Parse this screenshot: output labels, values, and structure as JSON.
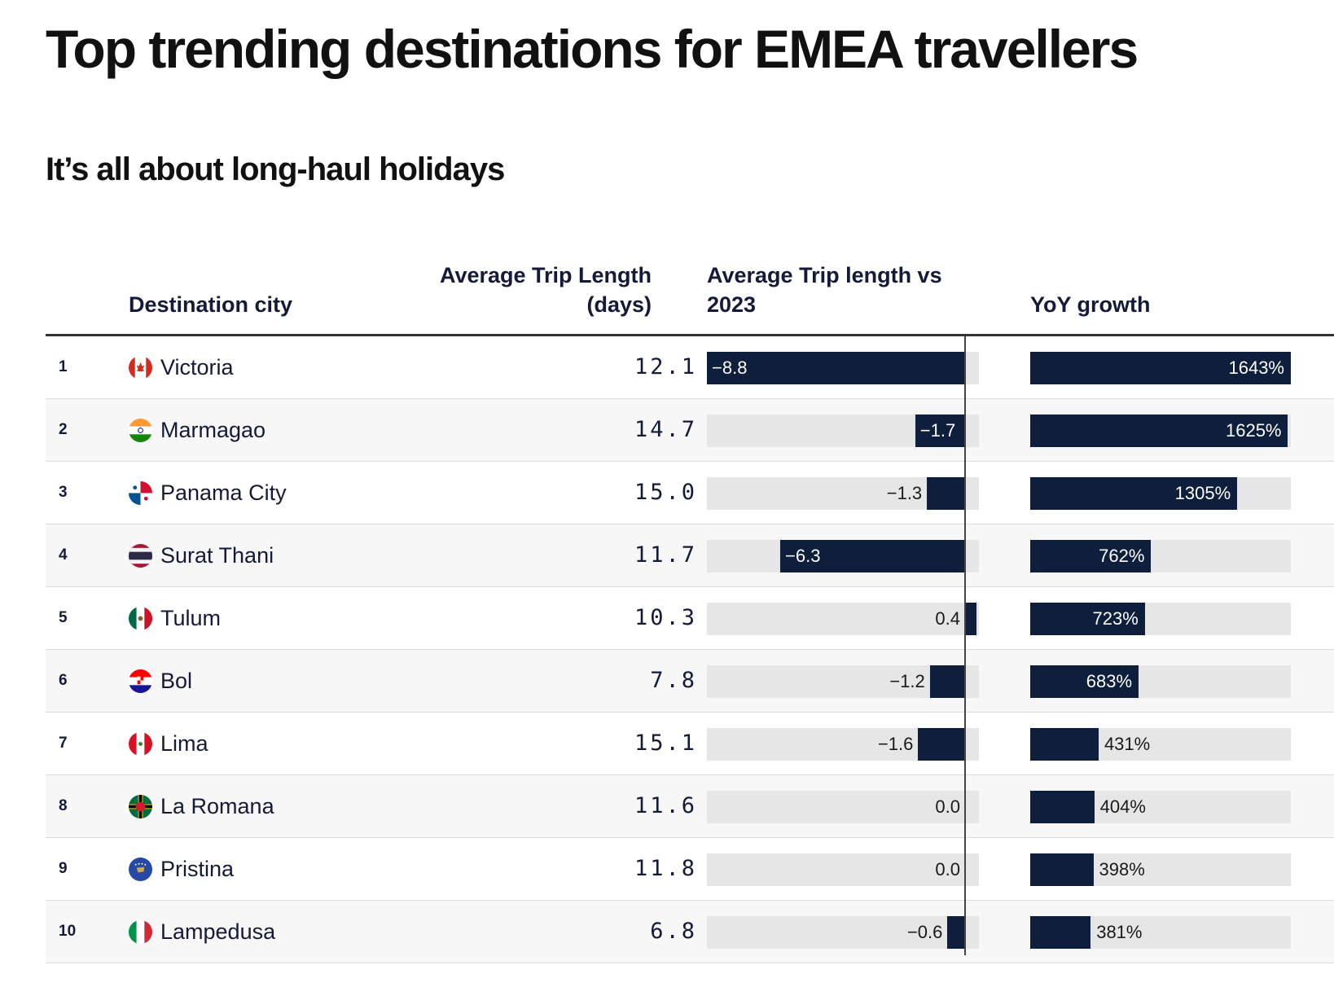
{
  "title": "Top trending destinations for EMEA travellers",
  "subtitle": "It’s all about long-haul holidays",
  "headers": {
    "city": "Destination city",
    "avg_len_line1": "Average Trip Length",
    "avg_len_line2": "(days)",
    "diff_line1": "Average Trip length vs",
    "diff_line2": "2023",
    "yoy": "YoY growth"
  },
  "chart_data": {
    "type": "table",
    "title": "Top trending destinations for EMEA travellers",
    "subtitle": "It’s all about long-haul holidays",
    "columns": [
      "",
      "Destination city",
      "Average Trip Length (days)",
      "Average Trip length vs 2023",
      "YoY growth"
    ],
    "diff_range": [
      -8.8,
      0.4
    ],
    "yoy_range": [
      0,
      1643
    ],
    "rows": [
      {
        "rank": "1",
        "flag": "canada-flag",
        "city": "Victoria",
        "avg": "12.1",
        "diff": -8.8,
        "diff_label": "−8.8",
        "yoy": 1643,
        "yoy_label": "1643%"
      },
      {
        "rank": "2",
        "flag": "india-flag",
        "city": "Marmagao",
        "avg": "14.7",
        "diff": -1.7,
        "diff_label": "−1.7",
        "yoy": 1625,
        "yoy_label": "1625%"
      },
      {
        "rank": "3",
        "flag": "panama-flag",
        "city": "Panama City",
        "avg": "15.0",
        "diff": -1.3,
        "diff_label": "−1.3",
        "yoy": 1305,
        "yoy_label": "1305%"
      },
      {
        "rank": "4",
        "flag": "thailand-flag",
        "city": "Surat Thani",
        "avg": "11.7",
        "diff": -6.3,
        "diff_label": "−6.3",
        "yoy": 762,
        "yoy_label": "762%"
      },
      {
        "rank": "5",
        "flag": "mexico-flag",
        "city": "Tulum",
        "avg": "10.3",
        "diff": 0.4,
        "diff_label": "0.4",
        "yoy": 723,
        "yoy_label": "723%"
      },
      {
        "rank": "6",
        "flag": "croatia-flag",
        "city": "Bol",
        "avg": "7.8",
        "diff": -1.2,
        "diff_label": "−1.2",
        "yoy": 683,
        "yoy_label": "683%"
      },
      {
        "rank": "7",
        "flag": "peru-flag",
        "city": "Lima",
        "avg": "15.1",
        "diff": -1.6,
        "diff_label": "−1.6",
        "yoy": 431,
        "yoy_label": "431%"
      },
      {
        "rank": "8",
        "flag": "dominica-flag",
        "city": "La Romana",
        "avg": "11.6",
        "diff": 0.0,
        "diff_label": "0.0",
        "yoy": 404,
        "yoy_label": "404%"
      },
      {
        "rank": "9",
        "flag": "kosovo-flag",
        "city": "Pristina",
        "avg": "11.8",
        "diff": 0.0,
        "diff_label": "0.0",
        "yoy": 398,
        "yoy_label": "398%"
      },
      {
        "rank": "10",
        "flag": "italy-flag",
        "city": "Lampedusa",
        "avg": "6.8",
        "diff": -0.6,
        "diff_label": "−0.6",
        "yoy": 381,
        "yoy_label": "381%"
      }
    ]
  },
  "colors": {
    "bar": "#0d1f3c",
    "track": "#e6e6e6",
    "text": "#141a38"
  }
}
